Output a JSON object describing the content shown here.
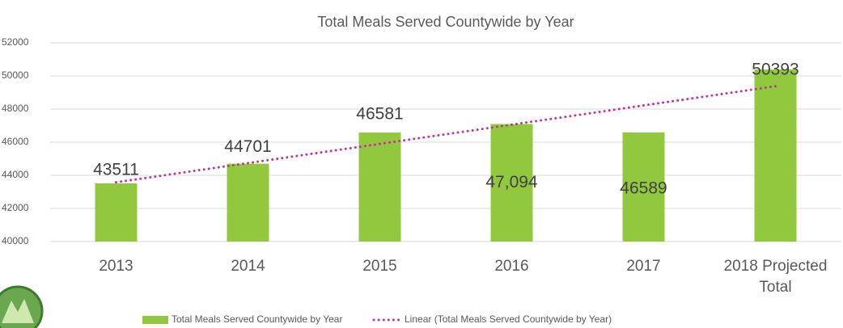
{
  "chart_data": {
    "type": "bar",
    "title": "Total Meals Served Countywide by Year",
    "categories": [
      "2013",
      "2014",
      "2015",
      "2016",
      "2017",
      "2018 Projected Total"
    ],
    "series": [
      {
        "name": "Total Meals Served Countywide by Year",
        "color": "#92c83e",
        "values": [
          43511,
          44701,
          46581,
          47094,
          46589,
          50393
        ],
        "value_labels": [
          "43511",
          "44701",
          "46581",
          "47,094",
          "46589",
          "50393"
        ]
      },
      {
        "name": "Linear (Total Meals Served Countywide by Year)",
        "color": "#c0359b",
        "style": "dotted",
        "values": [
          43579,
          44739,
          45898,
          47058,
          48218,
          49378
        ]
      }
    ],
    "ylim": [
      40000,
      52000
    ],
    "yticks": [
      40000,
      42000,
      44000,
      46000,
      48000,
      50000,
      52000
    ],
    "grid": true,
    "legend": "bottom"
  }
}
